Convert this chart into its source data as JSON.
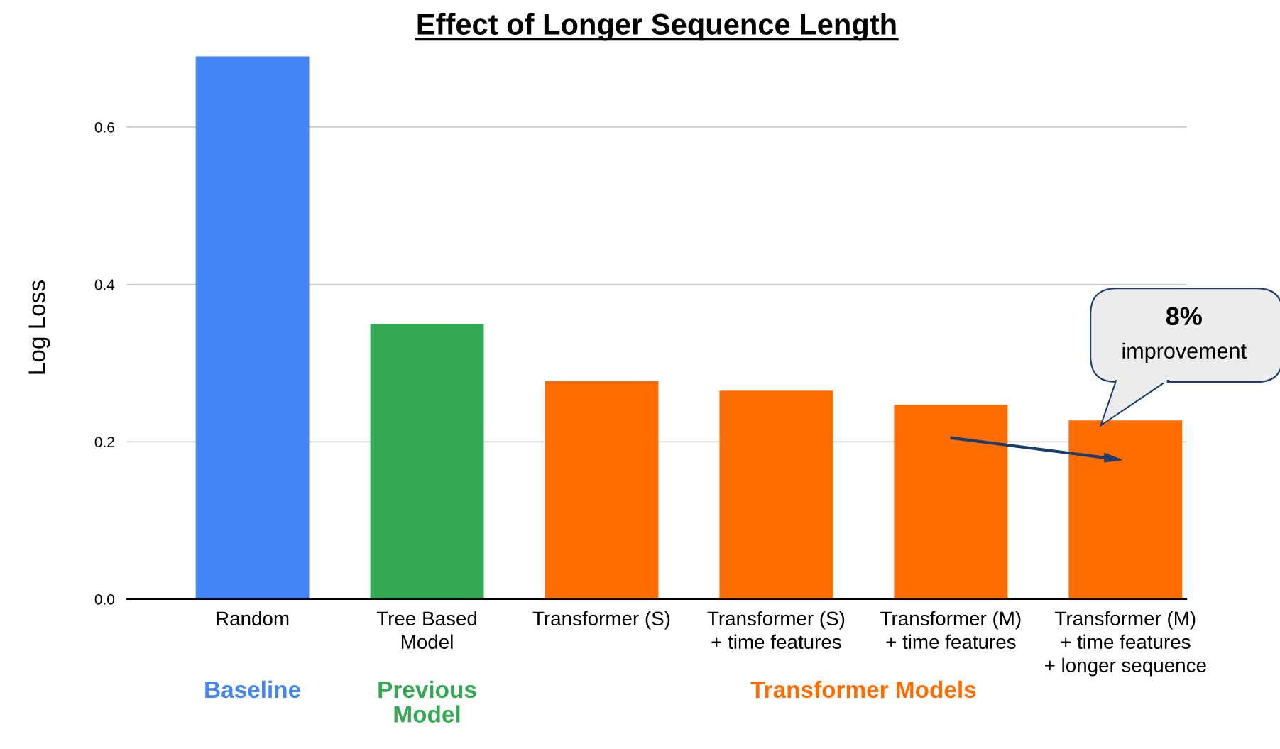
{
  "chart_data": {
    "type": "bar",
    "title": "Effect of Longer Sequence Length",
    "ylabel": "Log Loss",
    "categories": [
      "Random",
      "Tree Based\nModel",
      "Transformer (S)",
      "Transformer (S)\n+ time features",
      "Transformer (M)\n+ time features",
      "Transformer (M)\n+ time features\n+ longer sequence"
    ],
    "values": [
      0.69,
      0.35,
      0.277,
      0.265,
      0.247,
      0.227
    ],
    "colors": [
      "#4285f4",
      "#34a853",
      "#ff6d01",
      "#ff6d01",
      "#ff6d01",
      "#ff6d01"
    ],
    "yticks": [
      {
        "value": 0,
        "label": "0.0"
      },
      0.2,
      0.4,
      0.6
    ],
    "ylim": [
      0,
      0.69
    ],
    "grid": "y",
    "annotations": [
      "Baseline",
      "Previous\nModel",
      "Transformer Models",
      "8%",
      "improvement"
    ]
  }
}
